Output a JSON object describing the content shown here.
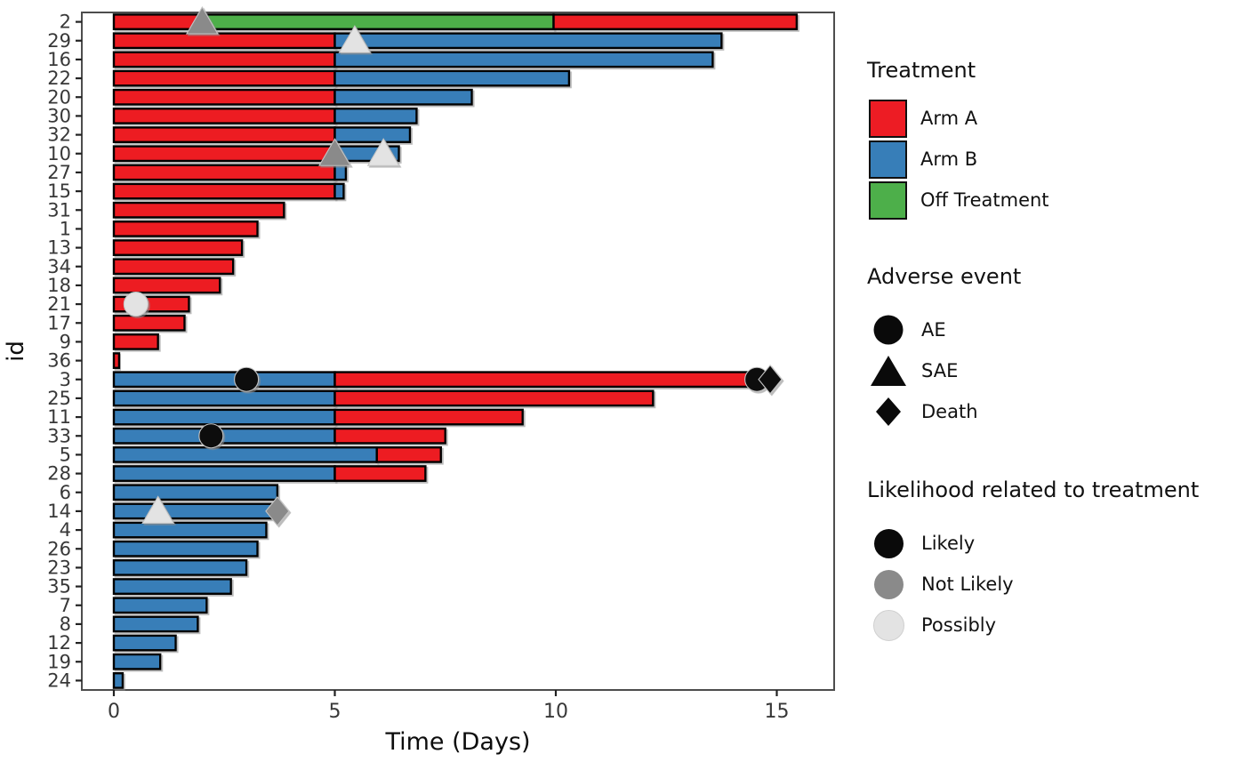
{
  "chart_data": {
    "type": "bar",
    "variant": "swimmer-plot-horizontal-stacked",
    "title": "",
    "xlabel": "Time (Days)",
    "ylabel": "id",
    "x_ticks": [
      0,
      5,
      10,
      15
    ],
    "xlim": [
      -0.65,
      16.3
    ],
    "grid": false,
    "colors": {
      "arm_a": "#ED1C24",
      "arm_b": "#377EB8",
      "off": "#4DAF4A",
      "likely": "#0A0A0A",
      "not_likely": "#8A8A8A",
      "possibly": "#E3E3E3",
      "axis_text": "#383838",
      "panel_border": "#4D4D4D",
      "bar_outline": "#000000"
    },
    "rows": [
      {
        "id": "2",
        "segments": [
          {
            "from": 0,
            "to": 2.05,
            "color": "arm_a"
          },
          {
            "from": 2.05,
            "to": 9.95,
            "color": "off"
          },
          {
            "from": 9.95,
            "to": 15.45,
            "color": "arm_a"
          }
        ],
        "markers": [
          {
            "day": 2.0,
            "shape": "triangle",
            "likelihood": "not_likely"
          }
        ]
      },
      {
        "id": "29",
        "segments": [
          {
            "from": 0,
            "to": 5,
            "color": "arm_a"
          },
          {
            "from": 5,
            "to": 13.75,
            "color": "arm_b"
          }
        ],
        "markers": [
          {
            "day": 5.45,
            "shape": "triangle",
            "likelihood": "possibly"
          }
        ]
      },
      {
        "id": "16",
        "segments": [
          {
            "from": 0,
            "to": 5,
            "color": "arm_a"
          },
          {
            "from": 5,
            "to": 13.55,
            "color": "arm_b"
          }
        ],
        "markers": []
      },
      {
        "id": "22",
        "segments": [
          {
            "from": 0,
            "to": 5,
            "color": "arm_a"
          },
          {
            "from": 5,
            "to": 10.3,
            "color": "arm_b"
          }
        ],
        "markers": []
      },
      {
        "id": "20",
        "segments": [
          {
            "from": 0,
            "to": 5,
            "color": "arm_a"
          },
          {
            "from": 5,
            "to": 8.1,
            "color": "arm_b"
          }
        ],
        "markers": []
      },
      {
        "id": "30",
        "segments": [
          {
            "from": 0,
            "to": 5,
            "color": "arm_a"
          },
          {
            "from": 5,
            "to": 6.85,
            "color": "arm_b"
          }
        ],
        "markers": []
      },
      {
        "id": "32",
        "segments": [
          {
            "from": 0,
            "to": 5,
            "color": "arm_a"
          },
          {
            "from": 5,
            "to": 6.7,
            "color": "arm_b"
          }
        ],
        "markers": []
      },
      {
        "id": "10",
        "segments": [
          {
            "from": 0,
            "to": 5,
            "color": "arm_a"
          },
          {
            "from": 5,
            "to": 6.45,
            "color": "arm_b"
          }
        ],
        "markers": [
          {
            "day": 5.0,
            "shape": "triangle",
            "likelihood": "not_likely"
          },
          {
            "day": 6.1,
            "shape": "triangle",
            "likelihood": "possibly"
          }
        ]
      },
      {
        "id": "27",
        "segments": [
          {
            "from": 0,
            "to": 5,
            "color": "arm_a"
          },
          {
            "from": 5,
            "to": 5.25,
            "color": "arm_b"
          }
        ],
        "markers": []
      },
      {
        "id": "15",
        "segments": [
          {
            "from": 0,
            "to": 5,
            "color": "arm_a"
          },
          {
            "from": 5,
            "to": 5.2,
            "color": "arm_b"
          }
        ],
        "markers": []
      },
      {
        "id": "31",
        "segments": [
          {
            "from": 0,
            "to": 3.85,
            "color": "arm_a"
          }
        ],
        "markers": []
      },
      {
        "id": "1",
        "segments": [
          {
            "from": 0,
            "to": 3.25,
            "color": "arm_a"
          }
        ],
        "markers": []
      },
      {
        "id": "13",
        "segments": [
          {
            "from": 0,
            "to": 2.9,
            "color": "arm_a"
          }
        ],
        "markers": []
      },
      {
        "id": "34",
        "segments": [
          {
            "from": 0,
            "to": 2.7,
            "color": "arm_a"
          }
        ],
        "markers": []
      },
      {
        "id": "18",
        "segments": [
          {
            "from": 0,
            "to": 2.4,
            "color": "arm_a"
          }
        ],
        "markers": []
      },
      {
        "id": "21",
        "segments": [
          {
            "from": 0,
            "to": 1.7,
            "color": "arm_a"
          }
        ],
        "markers": [
          {
            "day": 0.5,
            "shape": "circle",
            "likelihood": "possibly"
          }
        ]
      },
      {
        "id": "17",
        "segments": [
          {
            "from": 0,
            "to": 1.6,
            "color": "arm_a"
          }
        ],
        "markers": []
      },
      {
        "id": "9",
        "segments": [
          {
            "from": 0,
            "to": 1.0,
            "color": "arm_a"
          }
        ],
        "markers": []
      },
      {
        "id": "36",
        "segments": [
          {
            "from": 0,
            "to": 0.12,
            "color": "arm_a"
          }
        ],
        "markers": []
      },
      {
        "id": "3",
        "segments": [
          {
            "from": 0,
            "to": 5,
            "color": "arm_b"
          },
          {
            "from": 5,
            "to": 14.45,
            "color": "arm_a"
          }
        ],
        "markers": [
          {
            "day": 3.0,
            "shape": "circle",
            "likelihood": "likely"
          },
          {
            "day": 14.55,
            "shape": "circle",
            "likelihood": "likely"
          },
          {
            "day": 14.85,
            "shape": "diamond",
            "likelihood": "likely"
          }
        ]
      },
      {
        "id": "25",
        "segments": [
          {
            "from": 0,
            "to": 5,
            "color": "arm_b"
          },
          {
            "from": 5,
            "to": 12.2,
            "color": "arm_a"
          }
        ],
        "markers": []
      },
      {
        "id": "11",
        "segments": [
          {
            "from": 0,
            "to": 5,
            "color": "arm_b"
          },
          {
            "from": 5,
            "to": 9.25,
            "color": "arm_a"
          }
        ],
        "markers": []
      },
      {
        "id": "33",
        "segments": [
          {
            "from": 0,
            "to": 5,
            "color": "arm_b"
          },
          {
            "from": 5,
            "to": 7.5,
            "color": "arm_a"
          }
        ],
        "markers": [
          {
            "day": 2.2,
            "shape": "circle",
            "likelihood": "likely"
          }
        ]
      },
      {
        "id": "5",
        "segments": [
          {
            "from": 0,
            "to": 5.95,
            "color": "arm_b"
          },
          {
            "from": 5.95,
            "to": 7.4,
            "color": "arm_a"
          }
        ],
        "markers": []
      },
      {
        "id": "28",
        "segments": [
          {
            "from": 0,
            "to": 5,
            "color": "arm_b"
          },
          {
            "from": 5,
            "to": 7.05,
            "color": "arm_a"
          }
        ],
        "markers": []
      },
      {
        "id": "6",
        "segments": [
          {
            "from": 0,
            "to": 3.7,
            "color": "arm_b"
          }
        ],
        "markers": []
      },
      {
        "id": "14",
        "segments": [
          {
            "from": 0,
            "to": 3.6,
            "color": "arm_b"
          }
        ],
        "markers": [
          {
            "day": 1.0,
            "shape": "triangle",
            "likelihood": "possibly"
          },
          {
            "day": 3.7,
            "shape": "diamond",
            "likelihood": "not_likely"
          }
        ]
      },
      {
        "id": "4",
        "segments": [
          {
            "from": 0,
            "to": 3.45,
            "color": "arm_b"
          }
        ],
        "markers": []
      },
      {
        "id": "26",
        "segments": [
          {
            "from": 0,
            "to": 3.25,
            "color": "arm_b"
          }
        ],
        "markers": []
      },
      {
        "id": "23",
        "segments": [
          {
            "from": 0,
            "to": 3.0,
            "color": "arm_b"
          }
        ],
        "markers": []
      },
      {
        "id": "35",
        "segments": [
          {
            "from": 0,
            "to": 2.65,
            "color": "arm_b"
          }
        ],
        "markers": []
      },
      {
        "id": "7",
        "segments": [
          {
            "from": 0,
            "to": 2.1,
            "color": "arm_b"
          }
        ],
        "markers": []
      },
      {
        "id": "8",
        "segments": [
          {
            "from": 0,
            "to": 1.9,
            "color": "arm_b"
          }
        ],
        "markers": []
      },
      {
        "id": "12",
        "segments": [
          {
            "from": 0,
            "to": 1.4,
            "color": "arm_b"
          }
        ],
        "markers": []
      },
      {
        "id": "19",
        "segments": [
          {
            "from": 0,
            "to": 1.05,
            "color": "arm_b"
          }
        ],
        "markers": []
      },
      {
        "id": "24",
        "segments": [
          {
            "from": 0,
            "to": 0.2,
            "color": "arm_b"
          }
        ],
        "markers": []
      }
    ]
  },
  "legend": {
    "treatment": {
      "title": "Treatment",
      "items": [
        {
          "label": "Arm A",
          "color": "#ED1C24"
        },
        {
          "label": "Arm B",
          "color": "#377EB8"
        },
        {
          "label": "Off Treatment",
          "color": "#4DAF4A"
        }
      ]
    },
    "adverse": {
      "title": "Adverse event",
      "icon_color": "#0A0A0A",
      "items": [
        {
          "label": "AE",
          "shape": "circle"
        },
        {
          "label": "SAE",
          "shape": "triangle"
        },
        {
          "label": "Death",
          "shape": "diamond"
        }
      ]
    },
    "likelihood": {
      "title": "Likelihood related to treatment",
      "items": [
        {
          "label": "Likely",
          "color": "#0A0A0A"
        },
        {
          "label": "Not Likely",
          "color": "#8A8A8A"
        },
        {
          "label": "Possibly",
          "color": "#E3E3E3"
        }
      ]
    }
  }
}
